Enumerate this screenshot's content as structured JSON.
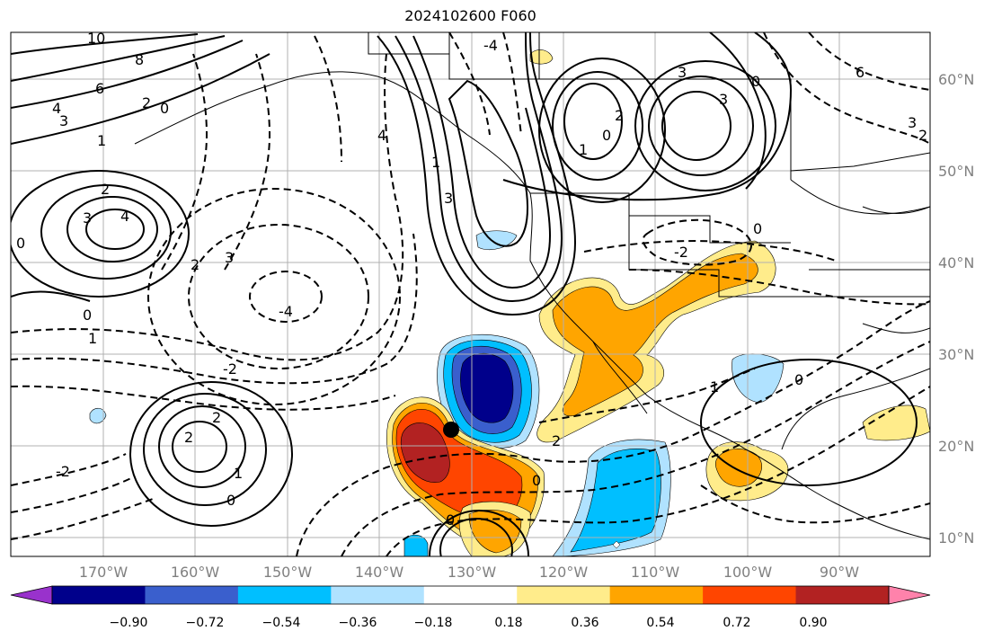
{
  "title": "2024102600 F060",
  "map": {
    "lon_labels": [
      "170°W",
      "160°W",
      "150°W",
      "140°W",
      "130°W",
      "120°W",
      "110°W",
      "100°W",
      "90°W"
    ],
    "lat_labels": [
      "60°N",
      "50°N",
      "40°N",
      "30°N",
      "20°N",
      "10°N"
    ],
    "gridlines": true
  },
  "colorbar": {
    "tick_labels": [
      "−0.90",
      "−0.72",
      "−0.54",
      "−0.36",
      "−0.18",
      "0.18",
      "0.36",
      "0.54",
      "0.72",
      "0.90"
    ],
    "colors": [
      "#9932cc",
      "#00008b",
      "#3a5fcd",
      "#00bfff",
      "#b0e2ff",
      "#ffffff",
      "#ffec8b",
      "#ffa500",
      "#ff4500",
      "#b22222",
      "#ff82ab"
    ]
  },
  "contour_labels": [
    {
      "text": "10"
    },
    {
      "text": "8"
    },
    {
      "text": "6"
    },
    {
      "text": "4"
    },
    {
      "text": "3"
    },
    {
      "text": "2"
    },
    {
      "text": "0"
    },
    {
      "text": "1"
    },
    {
      "text": "2"
    },
    {
      "text": "3"
    },
    {
      "text": "4"
    },
    {
      "text": "0"
    },
    {
      "text": "0"
    },
    {
      "text": "1"
    },
    {
      "text": "2"
    },
    {
      "text": "3"
    },
    {
      "text": "-4"
    },
    {
      "text": "-2"
    },
    {
      "text": "2"
    },
    {
      "text": "2"
    },
    {
      "text": "1"
    },
    {
      "text": "0"
    },
    {
      "text": "-2"
    },
    {
      "text": "-4"
    },
    {
      "text": "4"
    },
    {
      "text": "1"
    },
    {
      "text": "3"
    },
    {
      "text": "3"
    },
    {
      "text": "2"
    },
    {
      "text": "0"
    },
    {
      "text": "1"
    },
    {
      "text": "3"
    },
    {
      "text": "0"
    },
    {
      "text": "6"
    },
    {
      "text": "2"
    },
    {
      "text": "3"
    },
    {
      "text": "-2"
    },
    {
      "text": "0"
    },
    {
      "text": "2"
    },
    {
      "text": "0"
    },
    {
      "text": "1"
    },
    {
      "text": "0"
    },
    {
      "text": "0"
    }
  ],
  "marker": {
    "label": "storm-center"
  }
}
